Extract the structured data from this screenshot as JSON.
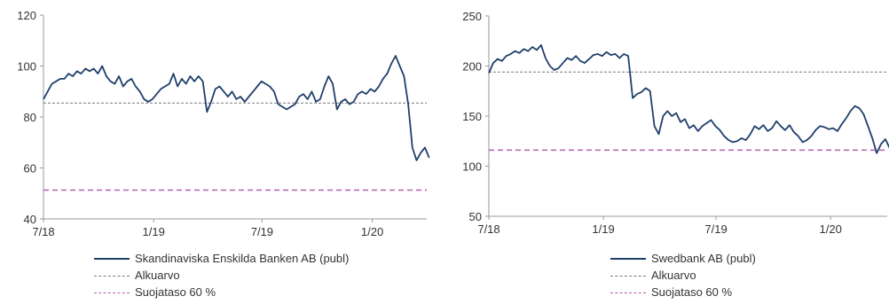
{
  "chart_data": [
    {
      "type": "line",
      "title": "",
      "xlabel": "",
      "ylabel": "",
      "xlim": [
        "2018-07",
        "2020-04"
      ],
      "ylim": [
        40,
        120
      ],
      "x_ticks": [
        "7/18",
        "1/19",
        "7/19",
        "1/20"
      ],
      "y_ticks": [
        40,
        60,
        80,
        100,
        120
      ],
      "legend": "bottom",
      "grid": false,
      "series": [
        {
          "name": "Skandinaviska Enskilda Banken AB (publ)",
          "color": "#1f3f6b",
          "points": [
            [
              "2018-07-01",
              87
            ],
            [
              "2018-07-08",
              90
            ],
            [
              "2018-07-15",
              93
            ],
            [
              "2018-07-22",
              94
            ],
            [
              "2018-07-29",
              95
            ],
            [
              "2018-08-05",
              95
            ],
            [
              "2018-08-12",
              97
            ],
            [
              "2018-08-19",
              96
            ],
            [
              "2018-08-26",
              98
            ],
            [
              "2018-09-02",
              97
            ],
            [
              "2018-09-09",
              99
            ],
            [
              "2018-09-16",
              98
            ],
            [
              "2018-09-23",
              99
            ],
            [
              "2018-09-30",
              97
            ],
            [
              "2018-10-07",
              100
            ],
            [
              "2018-10-14",
              96
            ],
            [
              "2018-10-21",
              94
            ],
            [
              "2018-10-28",
              93
            ],
            [
              "2018-11-04",
              96
            ],
            [
              "2018-11-11",
              92
            ],
            [
              "2018-11-18",
              94
            ],
            [
              "2018-11-25",
              95
            ],
            [
              "2018-12-02",
              92
            ],
            [
              "2018-12-09",
              90
            ],
            [
              "2018-12-16",
              87
            ],
            [
              "2018-12-23",
              86
            ],
            [
              "2018-12-30",
              87
            ],
            [
              "2019-01-06",
              89
            ],
            [
              "2019-01-13",
              91
            ],
            [
              "2019-01-20",
              92
            ],
            [
              "2019-01-27",
              93
            ],
            [
              "2019-02-03",
              97
            ],
            [
              "2019-02-10",
              92
            ],
            [
              "2019-02-17",
              95
            ],
            [
              "2019-02-24",
              93
            ],
            [
              "2019-03-03",
              96
            ],
            [
              "2019-03-10",
              94
            ],
            [
              "2019-03-17",
              96
            ],
            [
              "2019-03-24",
              94
            ],
            [
              "2019-03-31",
              82
            ],
            [
              "2019-04-07",
              86
            ],
            [
              "2019-04-14",
              91
            ],
            [
              "2019-04-21",
              92
            ],
            [
              "2019-04-28",
              90
            ],
            [
              "2019-05-05",
              88
            ],
            [
              "2019-05-12",
              90
            ],
            [
              "2019-05-19",
              87
            ],
            [
              "2019-05-26",
              88
            ],
            [
              "2019-06-02",
              86
            ],
            [
              "2019-06-09",
              88
            ],
            [
              "2019-06-16",
              90
            ],
            [
              "2019-06-23",
              92
            ],
            [
              "2019-06-30",
              94
            ],
            [
              "2019-07-07",
              93
            ],
            [
              "2019-07-14",
              92
            ],
            [
              "2019-07-21",
              90
            ],
            [
              "2019-07-28",
              85
            ],
            [
              "2019-08-04",
              84
            ],
            [
              "2019-08-11",
              83
            ],
            [
              "2019-08-18",
              84
            ],
            [
              "2019-08-25",
              85
            ],
            [
              "2019-09-01",
              88
            ],
            [
              "2019-09-08",
              89
            ],
            [
              "2019-09-15",
              87
            ],
            [
              "2019-09-22",
              90
            ],
            [
              "2019-09-29",
              86
            ],
            [
              "2019-10-06",
              87
            ],
            [
              "2019-10-13",
              92
            ],
            [
              "2019-10-20",
              96
            ],
            [
              "2019-10-27",
              93
            ],
            [
              "2019-11-03",
              83
            ],
            [
              "2019-11-10",
              86
            ],
            [
              "2019-11-17",
              87
            ],
            [
              "2019-11-24",
              85
            ],
            [
              "2019-12-01",
              86
            ],
            [
              "2019-12-08",
              89
            ],
            [
              "2019-12-15",
              90
            ],
            [
              "2019-12-22",
              89
            ],
            [
              "2019-12-29",
              91
            ],
            [
              "2020-01-05",
              90
            ],
            [
              "2020-01-12",
              92
            ],
            [
              "2020-01-19",
              95
            ],
            [
              "2020-01-26",
              97
            ],
            [
              "2020-02-02",
              101
            ],
            [
              "2020-02-09",
              104
            ],
            [
              "2020-02-16",
              100
            ],
            [
              "2020-02-23",
              96
            ],
            [
              "2020-03-01",
              85
            ],
            [
              "2020-03-08",
              68
            ],
            [
              "2020-03-15",
              63
            ],
            [
              "2020-03-22",
              66
            ],
            [
              "2020-03-29",
              68
            ],
            [
              "2020-04-05",
              64
            ]
          ]
        }
      ],
      "reference_lines": [
        {
          "name": "Alkuarvo",
          "value": 85.5,
          "style": "dotted",
          "color": "#7a7a7a"
        },
        {
          "name": "Suojataso 60 %",
          "value": 51.3,
          "style": "dashed",
          "color": "#b45fb0"
        }
      ]
    },
    {
      "type": "line",
      "title": "",
      "xlabel": "",
      "ylabel": "",
      "xlim": [
        "2018-07",
        "2020-04"
      ],
      "ylim": [
        50,
        250
      ],
      "x_ticks": [
        "7/18",
        "1/19",
        "7/19",
        "1/20"
      ],
      "y_ticks": [
        50,
        100,
        150,
        200,
        250
      ],
      "legend": "bottom",
      "grid": false,
      "series": [
        {
          "name": "Swedbank AB (publ)",
          "color": "#1f3f6b",
          "points": [
            [
              "2018-07-01",
              193
            ],
            [
              "2018-07-08",
              203
            ],
            [
              "2018-07-15",
              207
            ],
            [
              "2018-07-22",
              205
            ],
            [
              "2018-07-29",
              210
            ],
            [
              "2018-08-05",
              212
            ],
            [
              "2018-08-12",
              215
            ],
            [
              "2018-08-19",
              213
            ],
            [
              "2018-08-26",
              217
            ],
            [
              "2018-09-02",
              215
            ],
            [
              "2018-09-09",
              219
            ],
            [
              "2018-09-16",
              216
            ],
            [
              "2018-09-23",
              221
            ],
            [
              "2018-09-30",
              208
            ],
            [
              "2018-10-07",
              200
            ],
            [
              "2018-10-14",
              196
            ],
            [
              "2018-10-21",
              198
            ],
            [
              "2018-10-28",
              203
            ],
            [
              "2018-11-04",
              208
            ],
            [
              "2018-11-11",
              206
            ],
            [
              "2018-11-18",
              210
            ],
            [
              "2018-11-25",
              205
            ],
            [
              "2018-12-02",
              203
            ],
            [
              "2018-12-09",
              207
            ],
            [
              "2018-12-16",
              211
            ],
            [
              "2018-12-23",
              212
            ],
            [
              "2018-12-30",
              210
            ],
            [
              "2019-01-06",
              214
            ],
            [
              "2019-01-13",
              211
            ],
            [
              "2019-01-20",
              212
            ],
            [
              "2019-01-27",
              208
            ],
            [
              "2019-02-03",
              212
            ],
            [
              "2019-02-10",
              210
            ],
            [
              "2019-02-17",
              168
            ],
            [
              "2019-02-24",
              172
            ],
            [
              "2019-03-03",
              174
            ],
            [
              "2019-03-10",
              178
            ],
            [
              "2019-03-17",
              175
            ],
            [
              "2019-03-24",
              140
            ],
            [
              "2019-03-31",
              132
            ],
            [
              "2019-04-07",
              150
            ],
            [
              "2019-04-14",
              155
            ],
            [
              "2019-04-21",
              150
            ],
            [
              "2019-04-28",
              153
            ],
            [
              "2019-05-05",
              144
            ],
            [
              "2019-05-12",
              147
            ],
            [
              "2019-05-19",
              138
            ],
            [
              "2019-05-26",
              141
            ],
            [
              "2019-06-02",
              135
            ],
            [
              "2019-06-09",
              140
            ],
            [
              "2019-06-16",
              143
            ],
            [
              "2019-06-23",
              146
            ],
            [
              "2019-06-30",
              140
            ],
            [
              "2019-07-07",
              136
            ],
            [
              "2019-07-14",
              130
            ],
            [
              "2019-07-21",
              126
            ],
            [
              "2019-07-28",
              124
            ],
            [
              "2019-08-04",
              125
            ],
            [
              "2019-08-11",
              128
            ],
            [
              "2019-08-18",
              126
            ],
            [
              "2019-08-25",
              132
            ],
            [
              "2019-09-01",
              140
            ],
            [
              "2019-09-08",
              137
            ],
            [
              "2019-09-15",
              141
            ],
            [
              "2019-09-22",
              135
            ],
            [
              "2019-09-29",
              138
            ],
            [
              "2019-10-06",
              145
            ],
            [
              "2019-10-13",
              140
            ],
            [
              "2019-10-20",
              136
            ],
            [
              "2019-10-27",
              141
            ],
            [
              "2019-11-03",
              134
            ],
            [
              "2019-11-10",
              130
            ],
            [
              "2019-11-17",
              124
            ],
            [
              "2019-11-24",
              126
            ],
            [
              "2019-12-01",
              130
            ],
            [
              "2019-12-08",
              136
            ],
            [
              "2019-12-15",
              140
            ],
            [
              "2019-12-22",
              139
            ],
            [
              "2019-12-29",
              137
            ],
            [
              "2020-01-05",
              138
            ],
            [
              "2020-01-12",
              135
            ],
            [
              "2020-01-19",
              142
            ],
            [
              "2020-01-26",
              148
            ],
            [
              "2020-02-02",
              155
            ],
            [
              "2020-02-09",
              160
            ],
            [
              "2020-02-16",
              158
            ],
            [
              "2020-02-23",
              152
            ],
            [
              "2020-03-01",
              140
            ],
            [
              "2020-03-08",
              128
            ],
            [
              "2020-03-15",
              113
            ],
            [
              "2020-03-22",
              122
            ],
            [
              "2020-03-29",
              127
            ],
            [
              "2020-04-05",
              118
            ]
          ]
        }
      ],
      "reference_lines": [
        {
          "name": "Alkuarvo",
          "value": 194,
          "style": "dotted",
          "color": "#7a7a7a"
        },
        {
          "name": "Suojataso 60 %",
          "value": 116,
          "style": "dashed",
          "color": "#b45fb0"
        }
      ]
    }
  ]
}
